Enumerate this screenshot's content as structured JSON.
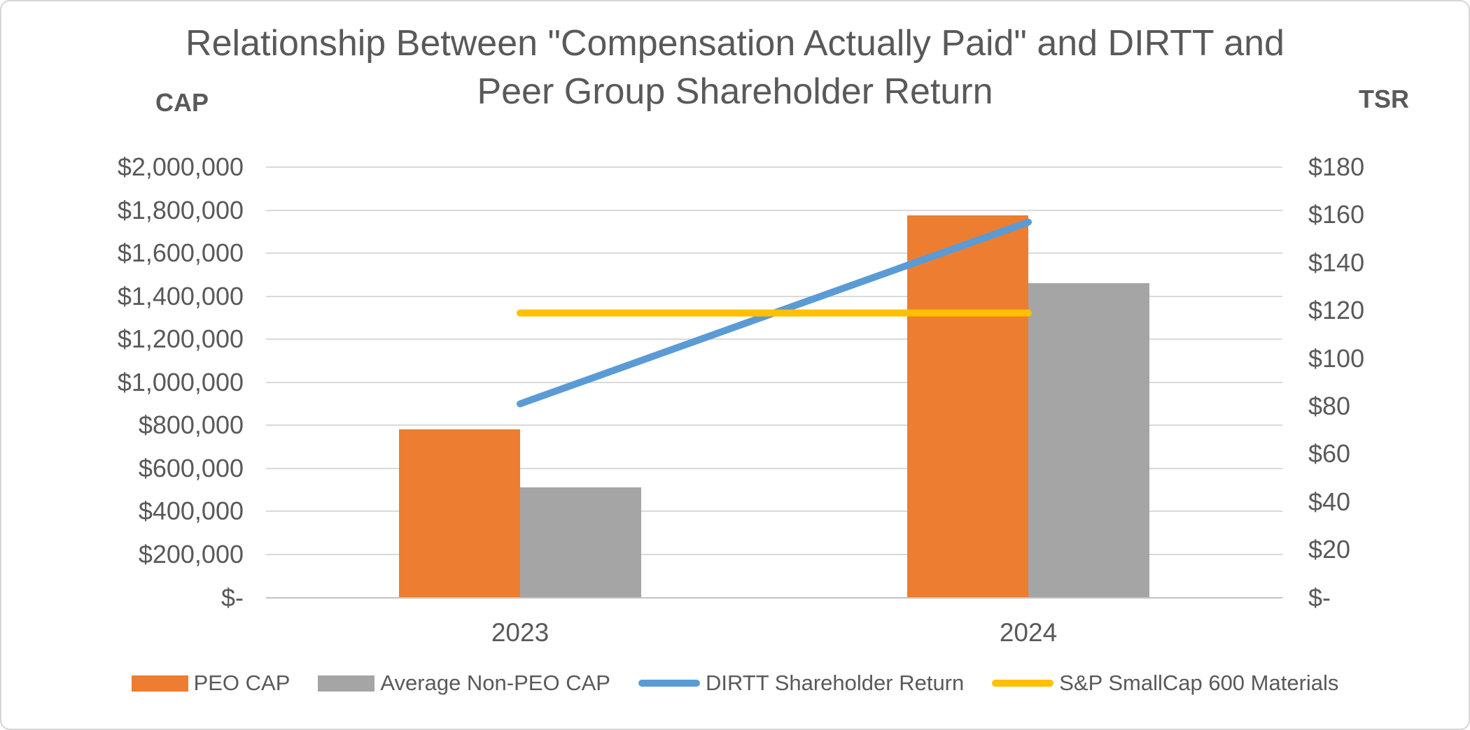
{
  "title": {
    "lines": [
      "Relationship Between \"Compensation Actually Paid\" and DIRTT and",
      "Peer Group Shareholder Return"
    ],
    "full": "Relationship Between \"Compensation Actually Paid\" and DIRTT and Peer Group Shareholder Return"
  },
  "axis_titles": {
    "left": "CAP",
    "right": "TSR"
  },
  "cap_axis": {
    "labels_top_to_bottom": [
      "$2,000,000",
      "$1,800,000",
      "$1,600,000",
      "$1,400,000",
      "$1,200,000",
      "$1,000,000",
      "$800,000",
      "$600,000",
      "$400,000",
      "$200,000",
      "$-"
    ],
    "min": 0,
    "max": 2000000,
    "step": 200000
  },
  "tsr_axis": {
    "labels_top_to_bottom": [
      "$180",
      "$160",
      "$140",
      "$120",
      "$100",
      "$80",
      "$60",
      "$40",
      "$20",
      "$-"
    ],
    "min": 0,
    "max": 180,
    "step": 20
  },
  "colors": {
    "peo_cap": "#ED7D31",
    "avg_non_peo_cap": "#A5A5A5",
    "dirtt_tsr": "#5B9BD5",
    "sp_smallcap": "#FFC000",
    "text": "#595959",
    "gridline": "#D9D9D9"
  },
  "chart_data": {
    "type": "combo-bar-line",
    "title": "Relationship Between \"Compensation Actually Paid\" and DIRTT and Peer Group Shareholder Return",
    "categories": [
      "2023",
      "2024"
    ],
    "series": [
      {
        "name": "PEO CAP",
        "type": "bar",
        "axis": "CAP",
        "color": "#ED7D31",
        "values": [
          780000,
          1776000
        ]
      },
      {
        "name": "Average Non-PEO CAP",
        "type": "bar",
        "axis": "CAP",
        "color": "#A5A5A5",
        "values": [
          511000,
          1462000
        ]
      },
      {
        "name": "DIRTT Shareholder Return",
        "type": "line",
        "axis": "TSR",
        "color": "#5B9BD5",
        "values": [
          81,
          157
        ]
      },
      {
        "name": "S&P SmallCap 600 Materials",
        "type": "line",
        "axis": "TSR",
        "color": "#FFC000",
        "values": [
          119,
          119
        ]
      }
    ],
    "ylabel_left": "CAP",
    "ylabel_right": "TSR",
    "ylim_left": [
      0,
      2000000
    ],
    "ylim_right": [
      0,
      180
    ],
    "grid": true,
    "legend_position": "bottom"
  }
}
